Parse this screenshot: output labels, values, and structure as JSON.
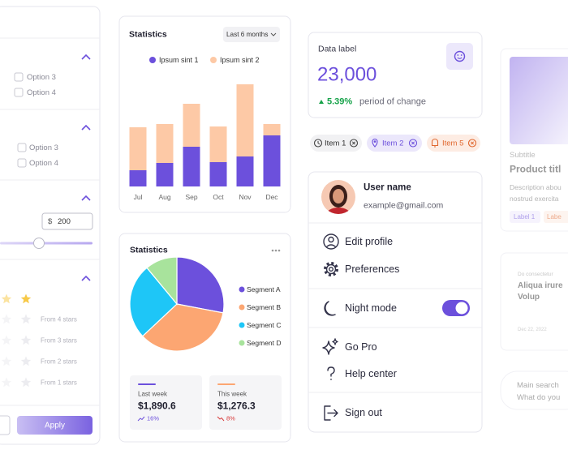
{
  "filter_panel": {
    "options": [
      "Option 3",
      "Option 4",
      "Option 3",
      "Option 4"
    ],
    "currency": "$",
    "price_input": "200",
    "ratings": [
      "From 4 stars",
      "From 3 stars",
      "From 2 stars",
      "From 1 stars"
    ],
    "apply": "Apply"
  },
  "chart_data": [
    {
      "type": "bar",
      "title": "Statistics",
      "dropdown": "Last 6 months",
      "stacked": true,
      "categories": [
        "Jul",
        "Aug",
        "Sep",
        "Oct",
        "Nov",
        "Dec"
      ],
      "series": [
        {
          "name": "Ipsum sint 1",
          "color": "#6c50dc",
          "values": [
            20,
            29,
            49,
            30,
            37,
            63
          ]
        },
        {
          "name": "Ipsum sint 2",
          "color": "#fdc9a6",
          "values": [
            53,
            48,
            53,
            44,
            89,
            14
          ]
        }
      ],
      "ylim": [
        0,
        130
      ]
    },
    {
      "type": "pie",
      "title": "Statistics",
      "categories": [
        "Segment A",
        "Segment B",
        "Segment C",
        "Segment D"
      ],
      "values": [
        28,
        35,
        26,
        11
      ],
      "colors": [
        "#6c50dc",
        "#fca672",
        "#1ec6f7",
        "#a8e39c"
      ]
    }
  ],
  "stat_cards": [
    {
      "label": "Last week",
      "value": "$1,890.6",
      "change": "16%",
      "accent": "#6c50dc"
    },
    {
      "label": "This week",
      "value": "$1,276.3",
      "change": "8%",
      "accent": "#fca672"
    }
  ],
  "data_card": {
    "label": "Data label",
    "value": "23,000",
    "change": "5.39%",
    "change_text": "period of change"
  },
  "chips": [
    "Item 1",
    "Item 2",
    "Item 5"
  ],
  "profile": {
    "name": "User name",
    "email": "example@gmail.com",
    "menu": [
      "Edit profile",
      "Preferences",
      "Night mode",
      "Go Pro",
      "Help center",
      "Sign out"
    ]
  },
  "product_card": {
    "subtitle": "Subtitle",
    "title": "Product titl",
    "description": [
      "Description abou",
      "nostrud exercita"
    ],
    "labels": [
      "Label 1",
      "Labe"
    ]
  },
  "article_card": {
    "kicker": "Do consectetur",
    "title": [
      "Aliqua irure",
      "Volup"
    ],
    "date": "Dec 22, 2022"
  },
  "search_card": {
    "label": "Main search",
    "placeholder": "What do you"
  }
}
